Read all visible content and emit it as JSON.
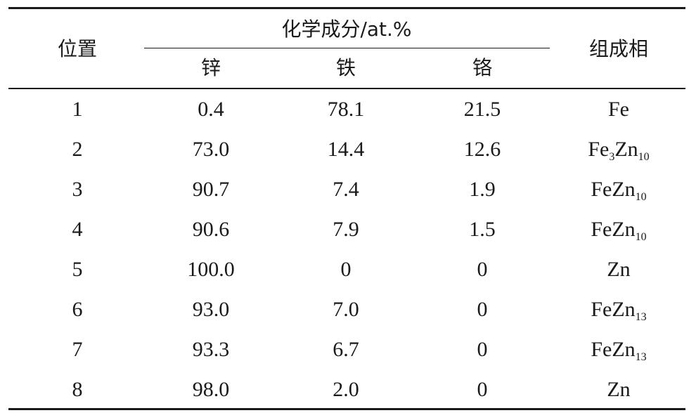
{
  "table": {
    "header": {
      "position": "位置",
      "composition": "化学成分/at.%",
      "phase": "组成相",
      "elements": [
        "锌",
        "铁",
        "铬"
      ]
    },
    "rows": [
      {
        "position": "1",
        "values": [
          "0.4",
          "78.1",
          "21.5"
        ],
        "phase": [
          {
            "text": "Fe"
          }
        ]
      },
      {
        "position": "2",
        "values": [
          "73.0",
          "14.4",
          "12.6"
        ],
        "phase": [
          {
            "text": "Fe"
          },
          {
            "sub": "3"
          },
          {
            "text": "Zn"
          },
          {
            "sub": "10"
          }
        ]
      },
      {
        "position": "3",
        "values": [
          "90.7",
          "7.4",
          "1.9"
        ],
        "phase": [
          {
            "text": "FeZn"
          },
          {
            "sub": "10"
          }
        ]
      },
      {
        "position": "4",
        "values": [
          "90.6",
          "7.9",
          "1.5"
        ],
        "phase": [
          {
            "text": "FeZn"
          },
          {
            "sub": "10"
          }
        ]
      },
      {
        "position": "5",
        "values": [
          "100.0",
          "0",
          "0"
        ],
        "phase": [
          {
            "text": "Zn"
          }
        ]
      },
      {
        "position": "6",
        "values": [
          "93.0",
          "7.0",
          "0"
        ],
        "phase": [
          {
            "text": "FeZn"
          },
          {
            "sub": "13"
          }
        ]
      },
      {
        "position": "7",
        "values": [
          "93.3",
          "6.7",
          "0"
        ],
        "phase": [
          {
            "text": "FeZn"
          },
          {
            "sub": "13"
          }
        ]
      },
      {
        "position": "8",
        "values": [
          "98.0",
          "2.0",
          "0"
        ],
        "phase": [
          {
            "text": "Zn"
          }
        ]
      }
    ]
  }
}
